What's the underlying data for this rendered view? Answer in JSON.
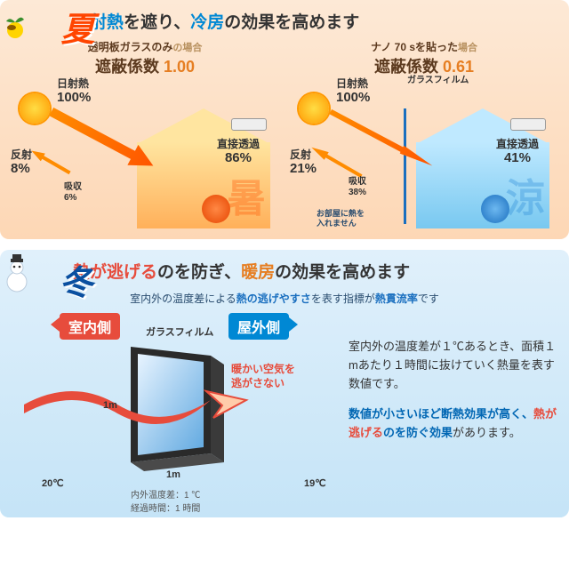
{
  "summer": {
    "badge": "夏",
    "headline_html": "<span class='hl-blue'>日射熱</span>を遮り、<span class='hl-blue'>冷房</span>の効果を高めます",
    "left": {
      "title_main": "透明板ガラスのみ",
      "title_sub": "の場合",
      "shield_label": "遮蔽係数",
      "shield_value": "1.00",
      "solar_label": "日射熱",
      "solar_value": "100%",
      "refl_label": "反射",
      "refl_value": "8%",
      "abs_label": "吸収",
      "abs_value": "6%",
      "trans_label": "直接透過",
      "trans_value": "86%",
      "kanji": "暑"
    },
    "right": {
      "title_main": "ナノ 70 sを貼った",
      "title_sub": "場合",
      "shield_label": "遮蔽係数",
      "shield_value": "0.61",
      "film_label": "ガラスフィルム",
      "solar_label": "日射熱",
      "solar_value": "100%",
      "refl_label": "反射",
      "refl_value": "21%",
      "abs_label": "吸収",
      "abs_value": "38%",
      "trans_label": "直接透過",
      "trans_value": "41%",
      "note1": "お部屋に熱を",
      "note2": "入れません",
      "kanji": "涼"
    },
    "colors": {
      "badge": "#ff4500",
      "panel_bg": "#fdd7b5"
    }
  },
  "winter": {
    "badge": "冬",
    "headline_html": "<span class='hl-red'>熱が逃げる</span>のを防ぎ、<span class='hl-orange'>暖房</span>の効果を高めます",
    "subnote_html": "室内外の温度差による<b>熱の逃げやすさ</b>を表す指標が<b>熱貫流率</b>です",
    "tag_inside": "室内側",
    "tag_outside": "屋外側",
    "film_label": "ガラスフィルム",
    "escape1": "暖かい空気を",
    "escape2": "逃がさない",
    "dim": "1m",
    "temp_in": "20℃",
    "temp_out": "19℃",
    "foot1": "内外温度差：1 ℃",
    "foot2": "経過時間：1 時間",
    "info_p1": "室内外の温度差が１℃あるとき、面積１mあたり１時間に抜けていく熱量を表す数値です。",
    "info_p2_html": "<span class='b'>数値が小さいほど断熱効果が高く、<span class='r'>熱が逃げる</span>のを防ぐ効果</span>があります。",
    "colors": {
      "badge": "#0a4fa0",
      "panel_bg": "#c5e4f7"
    }
  }
}
